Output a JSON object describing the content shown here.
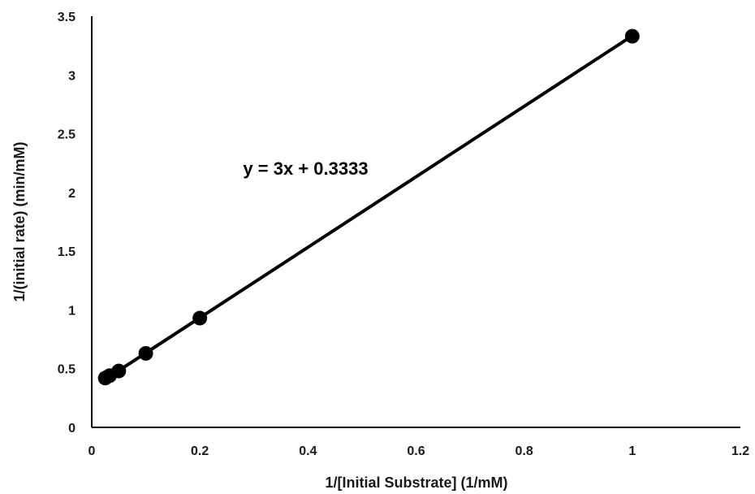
{
  "chart_data": {
    "type": "scatter",
    "xlabel": "1/[Initial Substrate] (1/mM)",
    "ylabel": "1/(initial rate) (min/mM)",
    "xlim": [
      0,
      1.2
    ],
    "ylim": [
      0,
      3.5
    ],
    "x_ticks": [
      0,
      0.2,
      0.4,
      0.6,
      0.8,
      1,
      1.2
    ],
    "x_tick_labels": [
      "0",
      "0.2",
      "0.4",
      "0.6",
      "0.8",
      "1",
      "1.2"
    ],
    "y_ticks": [
      0,
      0.5,
      1,
      1.5,
      2,
      2.5,
      3,
      3.5
    ],
    "y_tick_labels": [
      "0",
      "0.5",
      "1",
      "1.5",
      "2",
      "2.5",
      "3",
      "3.5"
    ],
    "grid": false,
    "legend": false,
    "series": [
      {
        "x": [
          0.025,
          0.033,
          0.05,
          0.1,
          0.2,
          1.0
        ],
        "y": [
          0.42,
          0.44,
          0.48,
          0.63,
          0.93,
          3.33
        ],
        "color": "#000000"
      }
    ],
    "trendline": {
      "slope": 3,
      "intercept": 0.3333,
      "x_range": [
        0.025,
        1.0
      ],
      "equation_label": "y = 3x + 0.3333",
      "label_x": 0.28,
      "label_y": 2.15,
      "color": "#000000"
    }
  }
}
